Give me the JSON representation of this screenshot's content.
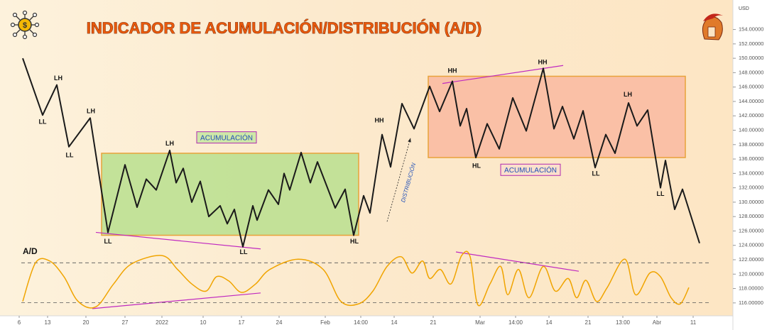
{
  "chart_data": {
    "type": "line",
    "title": "INDICADOR DE ACUMULACIÓN/DISTRIBUCIÓN (A/D)",
    "currency_label": "USD",
    "pane_label": "A/D",
    "xlim": [
      0,
      103.2
    ],
    "xticks": [
      {
        "value": 2.7,
        "label": "6"
      },
      {
        "value": 6.7,
        "label": "13"
      },
      {
        "value": 12.1,
        "label": "20"
      },
      {
        "value": 17.6,
        "label": "27"
      },
      {
        "value": 22.8,
        "label": "2022"
      },
      {
        "value": 28.6,
        "label": "10"
      },
      {
        "value": 34.0,
        "label": "17"
      },
      {
        "value": 39.3,
        "label": "24"
      },
      {
        "value": 45.8,
        "label": "Feb"
      },
      {
        "value": 50.8,
        "label": "14:00"
      },
      {
        "value": 55.5,
        "label": "14"
      },
      {
        "value": 61.0,
        "label": "21"
      },
      {
        "value": 67.6,
        "label": "Mar"
      },
      {
        "value": 72.6,
        "label": "14:00"
      },
      {
        "value": 77.3,
        "label": "14"
      },
      {
        "value": 82.8,
        "label": "21"
      },
      {
        "value": 87.7,
        "label": "13:00"
      },
      {
        "value": 92.5,
        "label": "Abr"
      },
      {
        "value": 97.6,
        "label": "11"
      }
    ],
    "ylim": [
      114.7,
      158.1
    ],
    "yticks": [
      {
        "value": 116,
        "label": "116.00000"
      },
      {
        "value": 118,
        "label": "118.00000"
      },
      {
        "value": 120,
        "label": "120.00000"
      },
      {
        "value": 122,
        "label": "122.00000"
      },
      {
        "value": 124,
        "label": "124.00000"
      },
      {
        "value": 126,
        "label": "126.00000"
      },
      {
        "value": 128,
        "label": "128.00000"
      },
      {
        "value": 130,
        "label": "130.00000"
      },
      {
        "value": 132,
        "label": "132.00000"
      },
      {
        "value": 134,
        "label": "134.00000"
      },
      {
        "value": 136,
        "label": "136.00000"
      },
      {
        "value": 138,
        "label": "138.00000"
      },
      {
        "value": 140,
        "label": "140.00000"
      },
      {
        "value": 142,
        "label": "142.00000"
      },
      {
        "value": 144,
        "label": "144.00000"
      },
      {
        "value": 146,
        "label": "146.00000"
      },
      {
        "value": 148,
        "label": "148.00000"
      },
      {
        "value": 150,
        "label": "150.00000"
      },
      {
        "value": 152,
        "label": "152.00000"
      },
      {
        "value": 154,
        "label": "154.00000"
      }
    ],
    "series": [
      {
        "color": "#1a1a1a",
        "x": [
          3.2,
          6.0,
          8.0,
          9.7,
          12.7,
          15.2,
          17.6,
          19.3,
          20.6,
          22.0,
          23.9,
          24.8,
          25.8,
          27.0,
          28.2,
          29.4,
          31.0,
          32.0,
          33.0,
          34.2,
          35.6,
          36.2,
          37.8,
          39.2,
          40.0,
          40.8,
          42.4,
          43.7,
          44.7,
          47.2,
          48.6,
          49.8,
          51.2,
          52.1,
          53.8,
          55.0,
          56.6,
          58.3,
          60.5,
          61.9,
          63.7,
          64.8,
          65.7,
          67.0,
          68.6,
          70.3,
          72.2,
          74.1,
          76.5,
          78.0,
          79.2,
          80.8,
          82.1,
          83.8,
          85.3,
          86.6,
          88.5,
          89.7,
          91.2,
          93.0,
          93.7,
          95.0,
          96.1,
          98.5
        ],
        "values": [
          150.0,
          142.1,
          146.3,
          137.7,
          141.7,
          125.8,
          135.2,
          129.3,
          133.2,
          131.7,
          137.2,
          132.7,
          134.7,
          130.0,
          132.9,
          128.0,
          129.5,
          127.0,
          129.0,
          123.8,
          129.5,
          127.5,
          131.7,
          129.7,
          134.0,
          131.7,
          136.9,
          132.7,
          135.6,
          129.2,
          131.8,
          125.4,
          130.9,
          128.5,
          139.4,
          134.9,
          143.7,
          140.2,
          146.1,
          142.6,
          146.8,
          140.6,
          143.0,
          136.2,
          140.9,
          137.4,
          144.5,
          139.9,
          148.6,
          140.2,
          143.3,
          138.8,
          142.7,
          134.8,
          139.4,
          136.8,
          143.8,
          140.6,
          142.8,
          132.0,
          135.8,
          129.0,
          131.8,
          124.3
        ]
      }
    ],
    "annotations": [
      {
        "text": "LL",
        "x": 6.0,
        "y": 141.1
      },
      {
        "text": "LH",
        "x": 8.2,
        "y": 147.2
      },
      {
        "text": "LL",
        "x": 9.8,
        "y": 136.5
      },
      {
        "text": "LH",
        "x": 12.8,
        "y": 142.6
      },
      {
        "text": "LL",
        "x": 15.2,
        "y": 124.5
      },
      {
        "text": "LH",
        "x": 23.9,
        "y": 138.1
      },
      {
        "text": "LL",
        "x": 34.3,
        "y": 123.0
      },
      {
        "text": "HL",
        "x": 49.9,
        "y": 124.5
      },
      {
        "text": "HH",
        "x": 53.4,
        "y": 141.3
      },
      {
        "text": "HH",
        "x": 63.7,
        "y": 148.2
      },
      {
        "text": "HL",
        "x": 67.1,
        "y": 135.0
      },
      {
        "text": "HH",
        "x": 76.4,
        "y": 149.4
      },
      {
        "text": "LH",
        "x": 88.4,
        "y": 144.9
      },
      {
        "text": "LL",
        "x": 83.9,
        "y": 133.9
      },
      {
        "text": "LL",
        "x": 93.0,
        "y": 131.1
      }
    ],
    "regions": [
      {
        "x": [
          14.3,
          50.5
        ],
        "y": [
          125.4,
          136.8
        ],
        "color": "#b9df8e",
        "label": "ACUMULACIÓN",
        "label_x": 31.9,
        "label_y": 139.0,
        "label_color": "#1f4fb8",
        "label_fill": "#cfe8a8"
      },
      {
        "x": [
          60.3,
          96.5
        ],
        "y": [
          136.2,
          147.5
        ],
        "color": "#f9b9a0",
        "label": "ACUMULACIÓN",
        "label_x": 74.7,
        "label_y": 134.5,
        "label_color": "#1f4fb8",
        "label_fill": "#fbe0cc"
      }
    ],
    "trendlines": [
      {
        "x": [
          13.5,
          36.7
        ],
        "y": [
          125.8,
          123.5
        ]
      },
      {
        "x": [
          62.3,
          79.3
        ],
        "y": [
          146.5,
          149.0
        ]
      }
    ],
    "distribution": {
      "text": "DISTRIBUCIÓN",
      "x": [
        54.5,
        57.8
      ],
      "y": [
        127.3,
        138.9
      ]
    },
    "oscillator": {
      "color": "#f0a400",
      "ylim": [
        0,
        100
      ],
      "levels": [
        82,
        16
      ],
      "x": [
        3.2,
        5.0,
        7.0,
        9.0,
        11.0,
        13.5,
        16.0,
        18.5,
        22.8,
        25.0,
        27.0,
        29.0,
        30.5,
        32.2,
        34.0,
        36.0,
        38.0,
        42.0,
        45.5,
        48.0,
        50.5,
        52.5,
        54.5,
        56.5,
        58.0,
        59.5,
        60.5,
        62.0,
        63.5,
        65.0,
        66.2,
        67.3,
        69.0,
        70.5,
        71.5,
        73.0,
        74.5,
        76.5,
        78.2,
        80.0,
        81.2,
        82.5,
        84.0,
        85.5,
        88.0,
        89.5,
        91.5,
        93.0,
        94.5,
        95.8,
        97.0
      ],
      "values": [
        18,
        82,
        85,
        59,
        18,
        9,
        47,
        80,
        94,
        71,
        47,
        35,
        59,
        52,
        33,
        47,
        71,
        88,
        71,
        18,
        14,
        35,
        76,
        92,
        65,
        85,
        56,
        71,
        47,
        94,
        92,
        12,
        47,
        76,
        29,
        71,
        24,
        76,
        35,
        56,
        24,
        53,
        18,
        41,
        88,
        29,
        65,
        59,
        24,
        14,
        41
      ],
      "trendlines": [
        {
          "x": [
            13.0,
            36.7
          ],
          "y": [
            6,
            32
          ]
        },
        {
          "x": [
            64.2,
            81.5
          ],
          "y": [
            100,
            68
          ]
        }
      ]
    }
  }
}
